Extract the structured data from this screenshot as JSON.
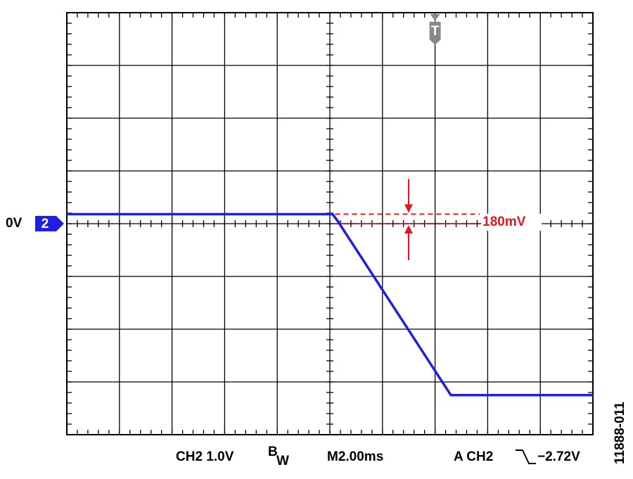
{
  "chart_data": {
    "type": "line",
    "x": [
      0,
      10.1,
      10.3,
      14.6,
      20
    ],
    "series": [
      {
        "name": "CH2",
        "color": "#1f1fe0",
        "values": [
          0.18,
          0.18,
          0.05,
          -3.25,
          -3.25
        ]
      }
    ],
    "xlim": [
      0,
      20
    ],
    "ylim": [
      -4,
      4
    ],
    "xticks": [
      0,
      2,
      4,
      6,
      8,
      10,
      12,
      14,
      16,
      18,
      20
    ],
    "yticks": [
      -4,
      -3,
      -2,
      -1,
      0,
      1,
      2,
      3,
      4
    ],
    "grid": true,
    "channel_label": "0V",
    "channel_number": "2",
    "trigger_marker": {
      "label": "T",
      "time": 14
    },
    "annotation": {
      "label": "180mV",
      "top": 0.18,
      "bottom": 0,
      "color": "#e8141c"
    },
    "footer": {
      "channel": "CH2  1.0V",
      "bw_b": "B",
      "bw_w": "W",
      "timebase": "M2.00ms",
      "trigger": "A  CH2",
      "trigger_level": "−2.72V"
    },
    "figure_id": "11888-011"
  }
}
